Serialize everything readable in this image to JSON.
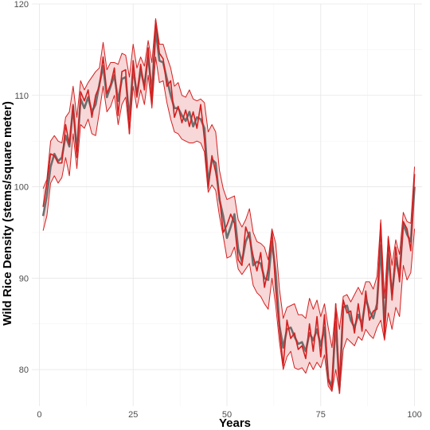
{
  "chart_data": {
    "type": "line",
    "title": "",
    "xlabel": "Years",
    "ylabel": "Wild Rice Density (stems/square meter)",
    "xlim": [
      -2,
      102
    ],
    "ylim": [
      76,
      120
    ],
    "xticks": [
      0,
      25,
      50,
      75,
      100
    ],
    "yticks": [
      80,
      90,
      100,
      110,
      120
    ],
    "grid": true,
    "legend": "none",
    "colors": {
      "mean_line": "#6e6e6e",
      "band_line": "#d42020",
      "band_fill": "#f4c9c9",
      "observed_line": "#d42020"
    },
    "x": [
      1,
      2,
      3,
      4,
      5,
      6,
      7,
      8,
      9,
      10,
      11,
      12,
      13,
      14,
      15,
      16,
      17,
      18,
      19,
      20,
      21,
      22,
      23,
      24,
      25,
      26,
      27,
      28,
      29,
      30,
      31,
      32,
      33,
      34,
      35,
      36,
      37,
      38,
      39,
      40,
      41,
      42,
      43,
      44,
      45,
      46,
      47,
      48,
      49,
      50,
      51,
      52,
      53,
      54,
      55,
      56,
      57,
      58,
      59,
      60,
      61,
      62,
      63,
      64,
      65,
      66,
      67,
      68,
      69,
      70,
      71,
      72,
      73,
      74,
      75,
      76,
      77,
      78,
      79,
      80,
      81,
      82,
      83,
      84,
      85,
      86,
      87,
      88,
      89,
      90,
      91,
      92,
      93,
      94,
      95,
      96,
      97,
      98,
      99,
      100
    ],
    "series": [
      {
        "role": "mean",
        "values": [
          96.8,
          99.0,
          102.2,
          103.6,
          102.8,
          103.2,
          105.6,
          104.4,
          108.8,
          103.8,
          109.6,
          108.6,
          109.8,
          108.2,
          109.0,
          111.2,
          113.2,
          109.8,
          111.0,
          112.2,
          109.4,
          111.8,
          112.0,
          107.4,
          113.0,
          110.0,
          112.8,
          111.0,
          114.4,
          110.2,
          117.2,
          113.8,
          113.6,
          111.8,
          110.0,
          108.6,
          108.6,
          107.8,
          107.2,
          108.2,
          106.6,
          107.6,
          107.4,
          106.4,
          100.4,
          103.0,
          102.6,
          98.6,
          96.8,
          94.4,
          95.6,
          97.0,
          93.2,
          91.8,
          94.0,
          95.0,
          91.4,
          91.8,
          91.6,
          90.0,
          89.8,
          94.0,
          90.6,
          84.8,
          82.4,
          84.4,
          84.6,
          83.6,
          82.8,
          83.0,
          82.0,
          84.0,
          83.2,
          84.4,
          82.6,
          84.6,
          79.0,
          78.2,
          85.2,
          78.0,
          86.8,
          87.0,
          85.4,
          84.6,
          86.0,
          85.0,
          87.8,
          86.4,
          85.6,
          87.2,
          93.6,
          84.4,
          92.6,
          88.2,
          92.2,
          90.2,
          96.0,
          94.8,
          94.0,
          100.0
        ]
      },
      {
        "role": "upper",
        "values": [
          99.8,
          100.8,
          105.0,
          105.6,
          105.0,
          104.8,
          107.6,
          108.2,
          111.0,
          107.6,
          111.6,
          110.6,
          111.4,
          112.0,
          112.6,
          113.0,
          115.8,
          112.8,
          113.6,
          113.6,
          113.4,
          114.6,
          114.4,
          112.0,
          115.6,
          113.0,
          114.2,
          113.2,
          116.0,
          113.6,
          118.4,
          115.6,
          115.6,
          114.2,
          113.0,
          111.0,
          111.4,
          110.0,
          109.8,
          110.6,
          109.6,
          109.4,
          109.6,
          109.2,
          106.0,
          106.8,
          106.0,
          101.8,
          99.8,
          98.6,
          98.8,
          99.0,
          96.4,
          95.6,
          96.4,
          97.6,
          95.0,
          94.0,
          93.8,
          93.4,
          92.0,
          95.4,
          93.8,
          88.8,
          85.6,
          86.8,
          87.0,
          87.2,
          86.0,
          86.0,
          85.6,
          87.8,
          86.6,
          87.6,
          85.8,
          87.2,
          84.6,
          82.4,
          87.0,
          84.4,
          88.0,
          88.2,
          87.4,
          88.2,
          89.0,
          88.2,
          89.6,
          89.6,
          88.8,
          90.2,
          96.4,
          87.8,
          94.6,
          91.4,
          94.2,
          92.6,
          97.2,
          96.2,
          96.0,
          102.2
        ]
      },
      {
        "role": "lower",
        "values": [
          95.2,
          96.8,
          100.4,
          101.2,
          100.4,
          101.0,
          103.2,
          101.2,
          105.8,
          102.0,
          106.8,
          106.4,
          107.4,
          105.8,
          105.6,
          108.2,
          111.0,
          108.2,
          108.8,
          110.0,
          106.8,
          109.0,
          109.8,
          105.8,
          111.0,
          108.6,
          110.6,
          109.0,
          112.2,
          108.6,
          114.2,
          111.4,
          111.6,
          109.2,
          107.4,
          106.0,
          105.8,
          105.2,
          105.0,
          104.8,
          104.8,
          105.0,
          104.8,
          103.8,
          99.4,
          100.2,
          99.6,
          96.8,
          94.6,
          92.2,
          92.4,
          93.4,
          91.0,
          90.4,
          91.0,
          91.6,
          89.2,
          88.4,
          88.0,
          87.2,
          86.6,
          90.0,
          87.0,
          83.0,
          80.0,
          81.4,
          82.0,
          80.2,
          80.0,
          80.2,
          79.6,
          80.8,
          80.0,
          80.8,
          80.2,
          81.6,
          78.2,
          77.6,
          80.0,
          77.4,
          82.2,
          83.4,
          83.0,
          82.6,
          83.6,
          83.2,
          84.4,
          83.8,
          83.4,
          84.6,
          85.4,
          83.2,
          86.2,
          84.4,
          86.8,
          85.8,
          91.4,
          89.8,
          90.6,
          95.4
        ]
      },
      {
        "role": "observed",
        "values": [
          97.8,
          100.4,
          103.6,
          103.4,
          102.6,
          102.6,
          106.8,
          104.6,
          109.0,
          103.2,
          110.4,
          109.4,
          110.6,
          107.6,
          110.0,
          111.0,
          114.2,
          110.2,
          111.2,
          113.0,
          107.8,
          112.6,
          112.8,
          105.8,
          113.8,
          109.8,
          113.4,
          110.6,
          115.2,
          109.0,
          118.2,
          114.6,
          114.0,
          111.0,
          111.6,
          107.6,
          108.8,
          107.0,
          108.4,
          106.6,
          108.2,
          106.4,
          109.0,
          105.2,
          99.8,
          103.4,
          101.6,
          99.0,
          95.0,
          95.8,
          97.0,
          96.0,
          92.0,
          91.4,
          95.6,
          94.4,
          92.4,
          90.8,
          92.8,
          89.0,
          91.0,
          95.2,
          88.8,
          84.4,
          80.4,
          85.4,
          83.4,
          84.0,
          82.2,
          82.6,
          81.2,
          85.0,
          82.0,
          85.8,
          81.4,
          86.0,
          78.8,
          77.8,
          87.2,
          77.4,
          87.6,
          86.2,
          86.4,
          84.0,
          87.2,
          84.2,
          88.6,
          85.4,
          86.4,
          86.6,
          96.0,
          83.4,
          94.4,
          87.6,
          93.4,
          89.6,
          96.2,
          95.4,
          93.0,
          101.4
        ]
      }
    ]
  }
}
